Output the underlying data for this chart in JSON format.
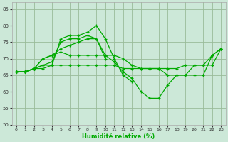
{
  "xlabel": "Humidité relative (%)",
  "bg_color": "#cce8d8",
  "grid_color": "#99bb99",
  "line_color": "#00aa00",
  "xlim": [
    -0.5,
    23.5
  ],
  "ylim": [
    50,
    87
  ],
  "yticks": [
    50,
    55,
    60,
    65,
    70,
    75,
    80,
    85
  ],
  "xticks": [
    0,
    1,
    2,
    3,
    4,
    5,
    6,
    7,
    8,
    9,
    10,
    11,
    12,
    13,
    14,
    15,
    16,
    17,
    18,
    19,
    20,
    21,
    22,
    23
  ],
  "series": [
    {
      "x": [
        0,
        1,
        2,
        3,
        4,
        5,
        6,
        7,
        8,
        9,
        10,
        11,
        12,
        13
      ],
      "y": [
        66,
        66,
        67,
        67,
        68,
        76,
        77,
        77,
        78,
        80,
        76,
        70,
        65,
        63
      ]
    },
    {
      "x": [
        0,
        1,
        2,
        3,
        4,
        5,
        6,
        7,
        8,
        9,
        10
      ],
      "y": [
        66,
        66,
        67,
        68,
        69,
        75,
        76,
        76,
        77,
        76,
        70
      ]
    },
    {
      "x": [
        0,
        1,
        2,
        3,
        4,
        5,
        6,
        7,
        8,
        9,
        10,
        11,
        12,
        13,
        14,
        15,
        16,
        17,
        18,
        19,
        20,
        21,
        22,
        23
      ],
      "y": [
        66,
        66,
        67,
        70,
        71,
        73,
        74,
        75,
        76,
        76,
        71,
        69,
        66,
        64,
        60,
        58,
        58,
        62,
        65,
        65,
        65,
        65,
        71,
        73
      ]
    },
    {
      "x": [
        0,
        1,
        2,
        3,
        4,
        5,
        6,
        7,
        8,
        9,
        10,
        11,
        12,
        13,
        14,
        15,
        16,
        17,
        18,
        19,
        20,
        21,
        22,
        23
      ],
      "y": [
        66,
        66,
        67,
        70,
        71,
        72,
        71,
        71,
        71,
        71,
        71,
        71,
        70,
        68,
        67,
        67,
        67,
        67,
        67,
        68,
        68,
        68,
        71,
        73
      ]
    },
    {
      "x": [
        0,
        1,
        2,
        3,
        4,
        5,
        6,
        7,
        8,
        9,
        10,
        11,
        12,
        13,
        14,
        15,
        16,
        17,
        18,
        19,
        20,
        21,
        22,
        23
      ],
      "y": [
        66,
        66,
        67,
        68,
        68,
        68,
        68,
        68,
        68,
        68,
        68,
        68,
        67,
        67,
        67,
        67,
        67,
        65,
        65,
        65,
        68,
        68,
        68,
        73
      ]
    }
  ]
}
